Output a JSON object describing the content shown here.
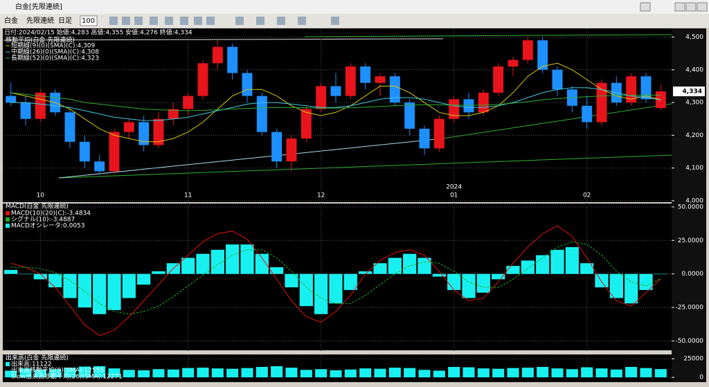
{
  "window": {
    "title": "白金[先限連続]"
  },
  "toolbar": {
    "items": [
      "白金",
      "先限連続",
      "日足"
    ],
    "count": "100"
  },
  "info": "日付:2024/02/15 始値:4,283 高値:4,355 安値:4,276 終値:4,334",
  "chart_data": [
    {
      "type": "candlestick",
      "legend_title": "移動平均(白金 先限連続)",
      "categories": [
        null,
        null,
        "10",
        null,
        null,
        null,
        null,
        null,
        null,
        null,
        null,
        null,
        "11",
        null,
        null,
        null,
        null,
        null,
        null,
        null,
        null,
        "12",
        null,
        null,
        null,
        null,
        null,
        null,
        null,
        null,
        "01",
        null,
        null,
        null,
        null,
        null,
        null,
        null,
        null,
        "02",
        null,
        null,
        null,
        null,
        null
      ],
      "year_label": "2024",
      "ohlc": [
        [
          4320,
          4360,
          4290,
          4300
        ],
        [
          4300,
          4320,
          4230,
          4250
        ],
        [
          4250,
          4340,
          4240,
          4330
        ],
        [
          4330,
          4340,
          4260,
          4270
        ],
        [
          4270,
          4280,
          4160,
          4180
        ],
        [
          4180,
          4200,
          4100,
          4120
        ],
        [
          4120,
          4140,
          4080,
          4090
        ],
        [
          4090,
          4220,
          4080,
          4210
        ],
        [
          4210,
          4250,
          4190,
          4240
        ],
        [
          4240,
          4260,
          4150,
          4170
        ],
        [
          4170,
          4270,
          4160,
          4250
        ],
        [
          4250,
          4300,
          4230,
          4280
        ],
        [
          4280,
          4330,
          4260,
          4320
        ],
        [
          4320,
          4430,
          4310,
          4420
        ],
        [
          4420,
          4490,
          4400,
          4470
        ],
        [
          4470,
          4480,
          4370,
          4390
        ],
        [
          4390,
          4400,
          4300,
          4320
        ],
        [
          4320,
          4330,
          4200,
          4210
        ],
        [
          4210,
          4220,
          4100,
          4120
        ],
        [
          4120,
          4200,
          4090,
          4190
        ],
        [
          4190,
          4290,
          4180,
          4280
        ],
        [
          4280,
          4360,
          4270,
          4350
        ],
        [
          4350,
          4390,
          4300,
          4320
        ],
        [
          4320,
          4420,
          4310,
          4410
        ],
        [
          4410,
          4420,
          4340,
          4360
        ],
        [
          4360,
          4390,
          4320,
          4380
        ],
        [
          4380,
          4390,
          4290,
          4300
        ],
        [
          4300,
          4310,
          4200,
          4220
        ],
        [
          4220,
          4230,
          4140,
          4160
        ],
        [
          4160,
          4260,
          4150,
          4250
        ],
        [
          4250,
          4320,
          4240,
          4310
        ],
        [
          4310,
          4330,
          4250,
          4270
        ],
        [
          4270,
          4340,
          4260,
          4330
        ],
        [
          4330,
          4420,
          4320,
          4410
        ],
        [
          4410,
          4440,
          4380,
          4430
        ],
        [
          4430,
          4500,
          4420,
          4490
        ],
        [
          4490,
          4500,
          4390,
          4400
        ],
        [
          4400,
          4410,
          4320,
          4340
        ],
        [
          4340,
          4350,
          4270,
          4290
        ],
        [
          4290,
          4320,
          4220,
          4240
        ],
        [
          4240,
          4370,
          4230,
          4360
        ],
        [
          4360,
          4380,
          4290,
          4300
        ],
        [
          4300,
          4390,
          4290,
          4380
        ],
        [
          4380,
          4390,
          4300,
          4310
        ],
        [
          4283,
          4355,
          4276,
          4334
        ]
      ],
      "up_color": "#e8141c",
      "down_color": "#1e8fff",
      "series": [
        {
          "name": "短期線(9)(0)(SMA)(C):4,309",
          "color": "#d8c810",
          "values": [
            4330,
            4320,
            4310,
            4300,
            4280,
            4250,
            4220,
            4200,
            4190,
            4180,
            4180,
            4190,
            4210,
            4240,
            4280,
            4320,
            4340,
            4340,
            4320,
            4290,
            4270,
            4260,
            4270,
            4290,
            4320,
            4350,
            4350,
            4330,
            4300,
            4270,
            4260,
            4260,
            4270,
            4290,
            4330,
            4380,
            4410,
            4420,
            4400,
            4370,
            4340,
            4320,
            4310,
            4320,
            4309
          ]
        },
        {
          "name": "中期線(26)(0)(SMA)(C):4,308",
          "color": "#40c8e0",
          "values": [
            4300,
            4300,
            4295,
            4290,
            4285,
            4275,
            4265,
            4255,
            4250,
            4245,
            4245,
            4250,
            4255,
            4265,
            4275,
            4285,
            4295,
            4300,
            4300,
            4295,
            4290,
            4285,
            4285,
            4290,
            4300,
            4310,
            4315,
            4315,
            4310,
            4300,
            4290,
            4285,
            4285,
            4290,
            4300,
            4315,
            4330,
            4340,
            4345,
            4345,
            4340,
            4330,
            4320,
            4315,
            4308
          ]
        },
        {
          "name": "長期線(52)(0)(SMA)(C):4,323",
          "color": "#30b030",
          "values": [
            4330,
            4325,
            4320,
            4315,
            4310,
            4300,
            4295,
            4290,
            4285,
            4280,
            4278,
            4276,
            4275,
            4276,
            4278,
            4280,
            4282,
            4284,
            4285,
            4285,
            4284,
            4283,
            4283,
            4284,
            4286,
            4288,
            4290,
            4292,
            4293,
            4293,
            4292,
            4292,
            4292,
            4294,
            4298,
            4303,
            4308,
            4312,
            4315,
            4318,
            4320,
            4321,
            4322,
            4323,
            4323
          ]
        }
      ],
      "price_label": "4,334",
      "ylim": [
        4000,
        4520
      ],
      "yticks": [
        {
          "value": 4000,
          "label": "4,000"
        },
        {
          "value": 4100,
          "label": "4,100"
        },
        {
          "value": 4200,
          "label": "4,200"
        },
        {
          "value": 4300,
          "label": "4,300"
        },
        {
          "value": 4400,
          "label": "4,400"
        },
        {
          "value": 4500,
          "label": "4,500"
        }
      ],
      "grid": true
    },
    {
      "type": "macd",
      "legend_title": "MACD(白金 先限連続)",
      "series": [
        {
          "name": "MACD(10)(20)(C):-3.4834",
          "color": "#e01010",
          "values": [
            8,
            5,
            0,
            -10,
            -24,
            -38,
            -46,
            -42,
            -32,
            -20,
            -8,
            4,
            14,
            24,
            30,
            32,
            26,
            12,
            -4,
            -20,
            -32,
            -36,
            -28,
            -16,
            0,
            10,
            16,
            18,
            14,
            2,
            -12,
            -20,
            -18,
            -6,
            8,
            20,
            30,
            36,
            28,
            12,
            -6,
            -20,
            -24,
            -14,
            -3.4834
          ]
        },
        {
          "name": "シグナル(10):-3.4887",
          "color": "#20b020",
          "values": [
            5,
            5,
            4,
            1,
            -5,
            -13,
            -22,
            -28,
            -30,
            -28,
            -24,
            -17,
            -9,
            -1,
            7,
            14,
            18,
            18,
            12,
            2,
            -10,
            -18,
            -22,
            -22,
            -16,
            -8,
            0,
            6,
            9,
            8,
            2,
            -6,
            -10,
            -10,
            -4,
            4,
            12,
            20,
            24,
            22,
            14,
            2,
            -6,
            -9,
            -3.4887
          ]
        },
        {
          "name": "MACDオシレータ:0.0053",
          "color": "#18f0f0",
          "values": [
            3,
            0,
            -4,
            -10,
            -18,
            -25,
            -30,
            -27,
            -18,
            -8,
            2,
            8,
            12,
            15,
            18,
            22,
            22,
            15,
            5,
            -10,
            -24,
            -30,
            -22,
            -12,
            2,
            8,
            12,
            15,
            12,
            -2,
            -12,
            -18,
            -14,
            -4,
            6,
            10,
            14,
            18,
            20,
            8,
            -10,
            -18,
            -22,
            -12,
            0.0053
          ]
        }
      ],
      "ylim": [
        -57,
        51.5
      ],
      "yticks": [
        {
          "value": -50,
          "label": "-50.0000"
        },
        {
          "value": -25,
          "label": "-25.0000"
        },
        {
          "value": 0,
          "label": "0.0000"
        },
        {
          "value": 25,
          "label": "25.0000"
        },
        {
          "value": 50,
          "label": "50.0000"
        }
      ],
      "grid": true
    },
    {
      "type": "volume",
      "legend_title": "出来高(白金 先限連続)",
      "series": [
        {
          "name": "出来高:11122",
          "color": "#18f0f0",
          "values": [
            9000,
            12000,
            10500,
            11000,
            13000,
            14500,
            15000,
            12000,
            10000,
            9500,
            11000,
            10500,
            12500,
            13000,
            12000,
            11500,
            12500,
            14000,
            15000,
            13000,
            10000,
            11000,
            9500,
            10500,
            12000,
            11500,
            13000,
            12500,
            10000,
            9000,
            14000,
            13500,
            12000,
            11500,
            12500,
            13000,
            14000,
            12000,
            11000,
            13500,
            12000,
            10500,
            14000,
            12500,
            11122
          ]
        }
      ],
      "legend_extra": [
        "出来高移動平均(9)(SMA):12555",
        "Slow出来高移動平均(26)(SMA):12271"
      ],
      "ylim": [
        0,
        28000
      ],
      "yticks": [
        0,
        25000
      ],
      "grid": true
    }
  ]
}
